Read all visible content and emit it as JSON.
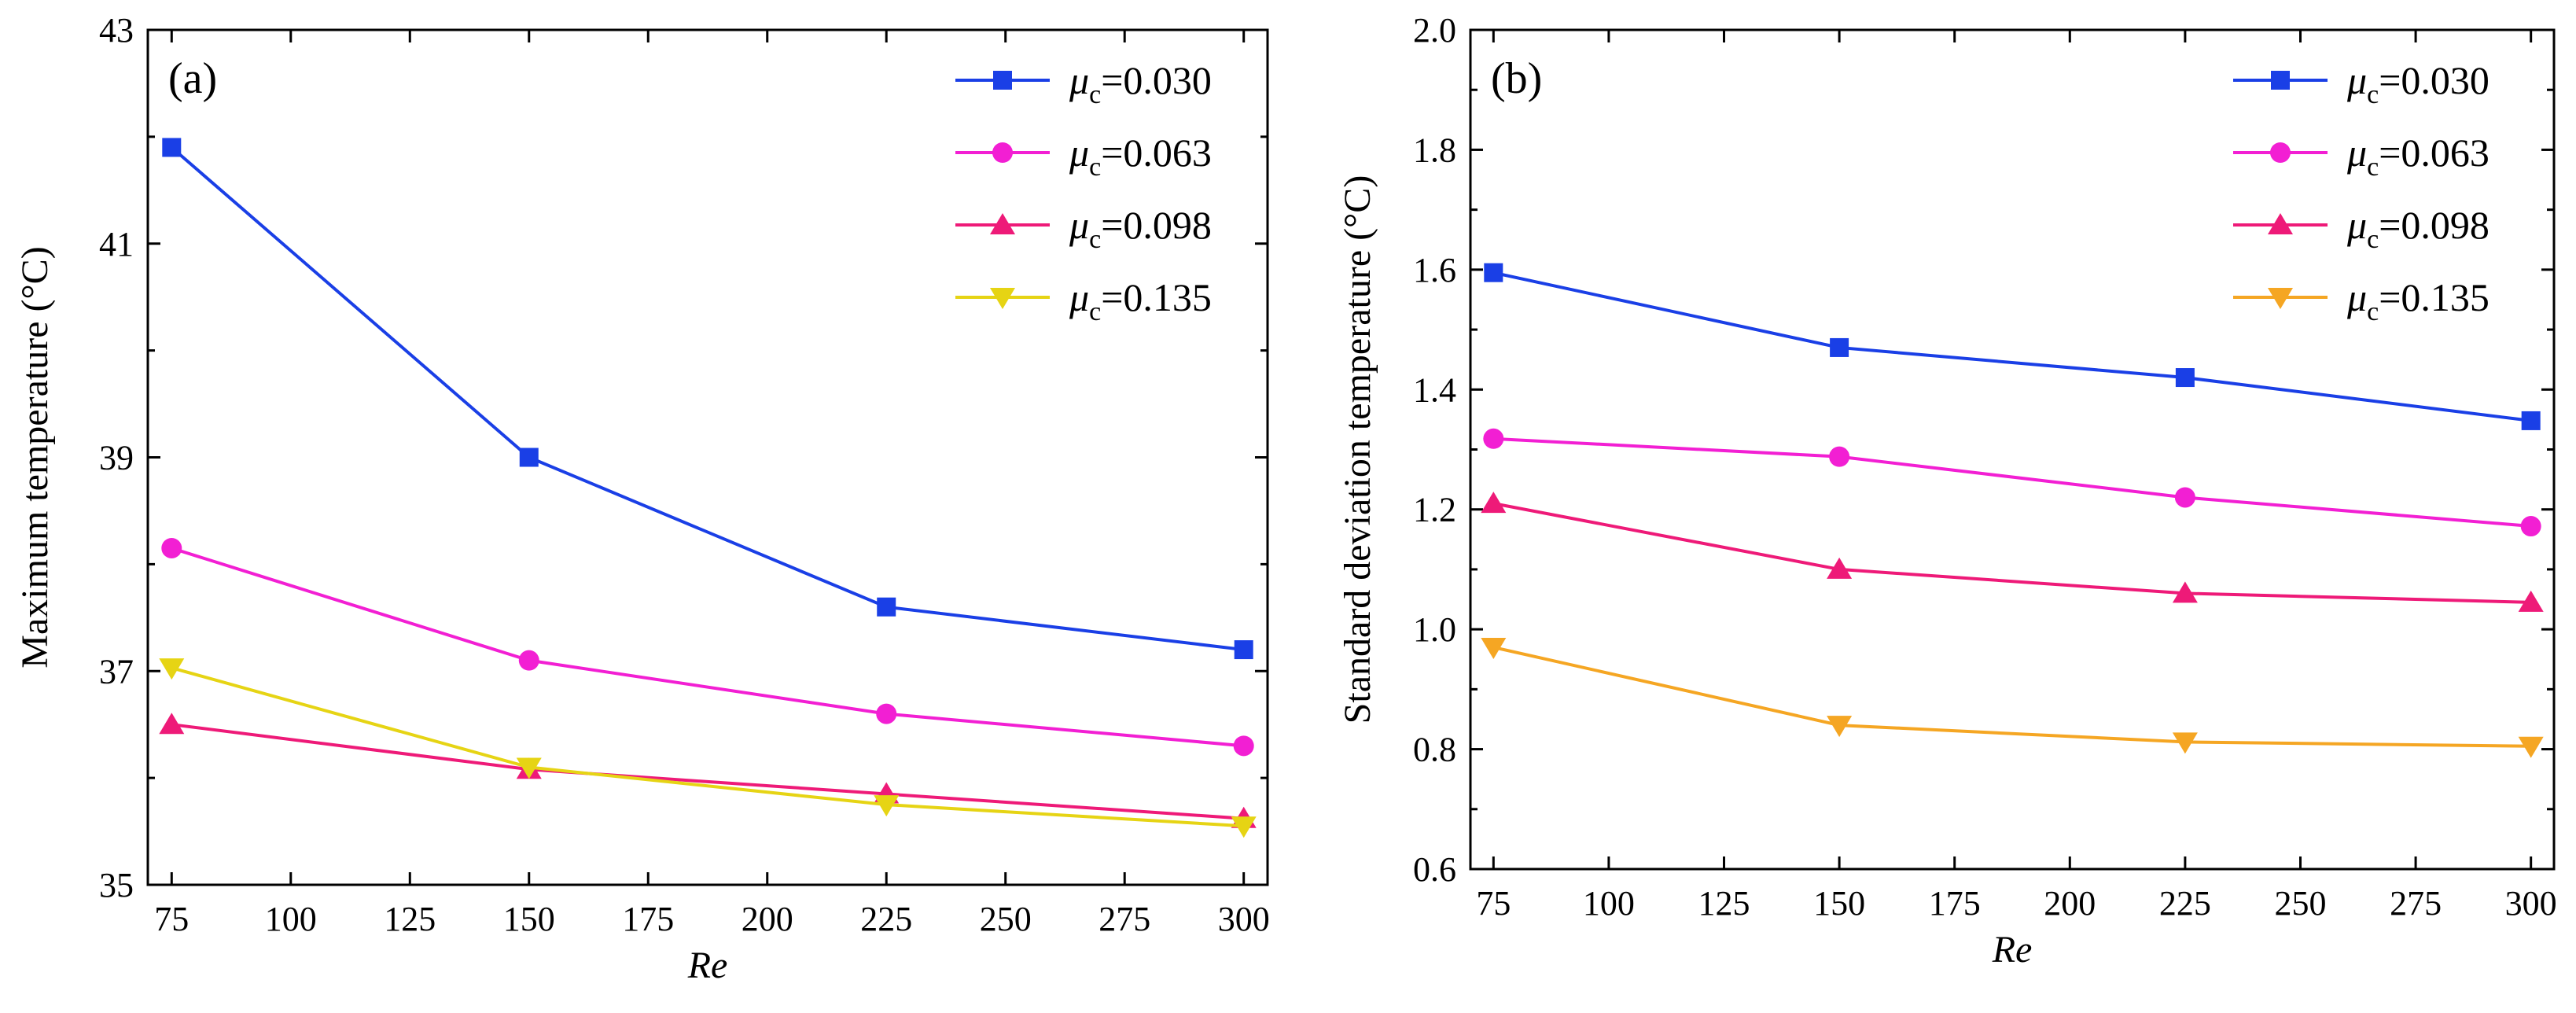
{
  "chart_data": [
    {
      "type": "line",
      "panel_label": "(a)",
      "title": "",
      "xlabel": "Re",
      "ylabel": "Maximum temperature (°C)",
      "xlim": [
        70,
        305
      ],
      "ylim": [
        35,
        43
      ],
      "xticks": [
        "75",
        "100",
        "125",
        "150",
        "175",
        "200",
        "225",
        "250",
        "275",
        "300"
      ],
      "yticks": [
        "35",
        "37",
        "39",
        "41",
        "43"
      ],
      "grid": false,
      "legend_position": "top-right",
      "x": [
        75,
        150,
        225,
        300
      ],
      "series": [
        {
          "name": "=0.030",
          "symbol": "μ",
          "subscript": "c",
          "marker": "square",
          "color": "#1a3fe6",
          "values": [
            41.9,
            39.0,
            37.6,
            37.2
          ]
        },
        {
          "name": "=0.063",
          "symbol": "μ",
          "subscript": "c",
          "marker": "circle",
          "color": "#f21fd3",
          "values": [
            38.15,
            37.1,
            36.6,
            36.3
          ]
        },
        {
          "name": "=0.098",
          "symbol": "μ",
          "subscript": "c",
          "marker": "triangle-up",
          "color": "#ee1a78",
          "values": [
            36.5,
            36.08,
            35.85,
            35.62
          ]
        },
        {
          "name": "=0.135",
          "symbol": "μ",
          "subscript": "c",
          "marker": "triangle-down",
          "color": "#e6d414",
          "values": [
            37.03,
            36.1,
            35.75,
            35.55
          ]
        }
      ]
    },
    {
      "type": "line",
      "panel_label": "(b)",
      "title": "",
      "xlabel": "Re",
      "ylabel": "Standard deviation temperature (°C)",
      "xlim": [
        70,
        305
      ],
      "ylim": [
        0.6,
        2.0
      ],
      "xticks": [
        "75",
        "100",
        "125",
        "150",
        "175",
        "200",
        "225",
        "250",
        "275",
        "300"
      ],
      "yticks": [
        "0.6",
        "0.8",
        "1.0",
        "1.2",
        "1.4",
        "1.6",
        "1.8",
        "2.0"
      ],
      "grid": false,
      "legend_position": "top-right",
      "x": [
        75,
        150,
        225,
        300
      ],
      "series": [
        {
          "name": "=0.030",
          "symbol": "μ",
          "subscript": "c",
          "marker": "square",
          "color": "#1a3fe6",
          "values": [
            1.595,
            1.47,
            1.42,
            1.348
          ]
        },
        {
          "name": "=0.063",
          "symbol": "μ",
          "subscript": "c",
          "marker": "circle",
          "color": "#f21fd3",
          "values": [
            1.318,
            1.288,
            1.22,
            1.172
          ]
        },
        {
          "name": "=0.098",
          "symbol": "μ",
          "subscript": "c",
          "marker": "triangle-up",
          "color": "#ee1a78",
          "values": [
            1.21,
            1.1,
            1.06,
            1.045
          ]
        },
        {
          "name": "=0.135",
          "symbol": "μ",
          "subscript": "c",
          "marker": "triangle-down",
          "color": "#f5a623",
          "values": [
            0.97,
            0.84,
            0.812,
            0.805
          ]
        }
      ]
    }
  ]
}
